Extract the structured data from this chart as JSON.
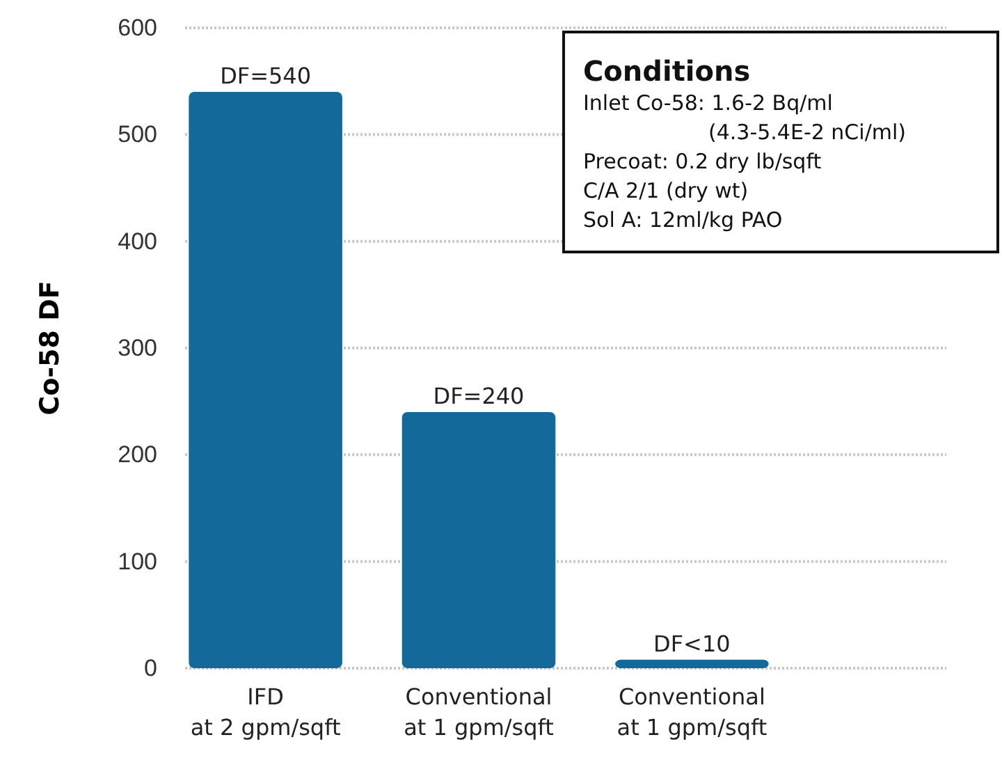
{
  "chart_data": {
    "type": "bar",
    "ylabel": "Co-58 DF",
    "categories": [
      "IFD\nat 2 gpm/sqft",
      "Conventional\nat 1 gpm/sqft",
      "Conventional\nat 1 gpm/sqft"
    ],
    "values": [
      540,
      240,
      8
    ],
    "color": "#13699a",
    "value_labels": [
      "DF=540",
      "DF=240",
      "DF<10"
    ],
    "ylim": [
      0,
      600
    ],
    "yticks": [
      0,
      100,
      200,
      300,
      400,
      500,
      600
    ],
    "grid": "y",
    "annotations": [
      "Conditions",
      "Inlet Co-58:  1.6-2 Bq/ml",
      "(4.3-5.4E-2 nCi/ml)",
      "Precoat:  0.2 dry lb/sqft",
      "C/A  2/1 (dry wt)",
      "Sol A:  12ml/kg PAO"
    ]
  }
}
